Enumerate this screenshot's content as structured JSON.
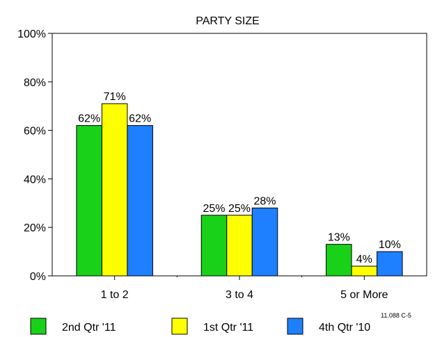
{
  "chart_data": {
    "type": "bar",
    "title": "PARTY SIZE",
    "xlabel": "",
    "ylabel": "",
    "categories": [
      "1 to 2",
      "3 to 4",
      "5 or More"
    ],
    "series": [
      {
        "name": "2nd Qtr '11",
        "color": "#19d119",
        "values": [
          62,
          25,
          13
        ],
        "labels": [
          "62%",
          "25%",
          "13%"
        ]
      },
      {
        "name": "1st Qtr '11",
        "color": "#ffff00",
        "values": [
          71,
          25,
          4
        ],
        "labels": [
          "71%",
          "25%",
          "4%"
        ]
      },
      {
        "name": "4th Qtr '10",
        "color": "#1e7fff",
        "values": [
          62,
          28,
          10
        ],
        "labels": [
          "62%",
          "28%",
          "10%"
        ]
      }
    ],
    "ylim": [
      0,
      100
    ],
    "yticks": [
      0,
      20,
      40,
      60,
      80,
      100
    ],
    "ytick_labels": [
      "0%",
      "20%",
      "40%",
      "60%",
      "80%",
      "100%"
    ],
    "grid": false,
    "legend_position": "bottom",
    "annotation": "11.088 C-5"
  }
}
